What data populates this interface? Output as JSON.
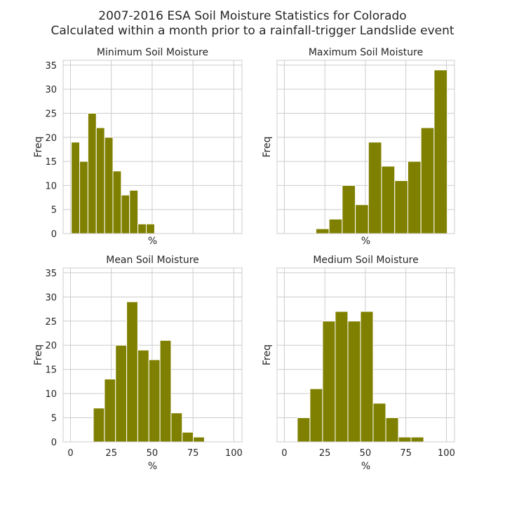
{
  "title_line1": "2007-2016 ESA Soil Moisture Statistics for Colorado",
  "title_line2": "Calculated within a month prior to a rainfall-trigger Landslide event",
  "bar_color": "#808000",
  "chart_data": [
    {
      "type": "bar",
      "title": "Minimum Soil Moisture",
      "xlabel": "%",
      "ylabel": "Freq",
      "xlim": [
        -4.5,
        105
      ],
      "ylim": [
        0,
        36
      ],
      "show_x_ticklabels": false,
      "show_y_ticklabels": true,
      "bin_edges": [
        0.5,
        5.6,
        10.7,
        15.8,
        20.9,
        26.0,
        31.1,
        36.2,
        41.3,
        46.4,
        51.5
      ],
      "values": [
        19,
        15,
        25,
        22,
        20,
        13,
        8,
        9,
        2,
        2
      ]
    },
    {
      "type": "bar",
      "title": "Maximum Soil Moisture",
      "xlabel": "%",
      "ylabel": "Freq",
      "xlim": [
        -4.5,
        105
      ],
      "ylim": [
        0,
        36
      ],
      "show_x_ticklabels": false,
      "show_y_ticklabels": false,
      "bin_edges": [
        19.5,
        27.6,
        35.7,
        43.8,
        51.9,
        60.0,
        68.1,
        76.2,
        84.3,
        92.4,
        100.5
      ],
      "values": [
        1,
        3,
        10,
        6,
        19,
        14,
        11,
        15,
        22,
        34
      ]
    },
    {
      "type": "bar",
      "title": "Mean Soil Moisture",
      "xlabel": "%",
      "ylabel": "Freq",
      "xlim": [
        -4.5,
        105
      ],
      "ylim": [
        0,
        36
      ],
      "show_x_ticklabels": true,
      "show_y_ticklabels": true,
      "x_ticks": [
        0,
        25,
        50,
        75,
        100
      ],
      "bin_edges": [
        14,
        20.8,
        27.6,
        34.4,
        41.2,
        48.0,
        54.8,
        61.6,
        68.4,
        75.2,
        82.0
      ],
      "values": [
        7,
        13,
        20,
        29,
        19,
        17,
        21,
        6,
        2,
        1
      ]
    },
    {
      "type": "bar",
      "title": "Medium Soil Moisture",
      "xlabel": "%",
      "ylabel": "Freq",
      "xlim": [
        -4.5,
        105
      ],
      "ylim": [
        0,
        36
      ],
      "show_x_ticklabels": true,
      "show_y_ticklabels": false,
      "x_ticks": [
        0,
        25,
        50,
        75,
        100
      ],
      "bin_edges": [
        8.0,
        15.8,
        23.6,
        31.4,
        39.2,
        47.0,
        54.8,
        62.6,
        70.4,
        78.2,
        86.0
      ],
      "values": [
        5,
        11,
        25,
        27,
        25,
        27,
        8,
        5,
        1,
        1
      ]
    }
  ],
  "y_ticks": [
    0,
    5,
    10,
    15,
    20,
    25,
    30,
    35
  ]
}
